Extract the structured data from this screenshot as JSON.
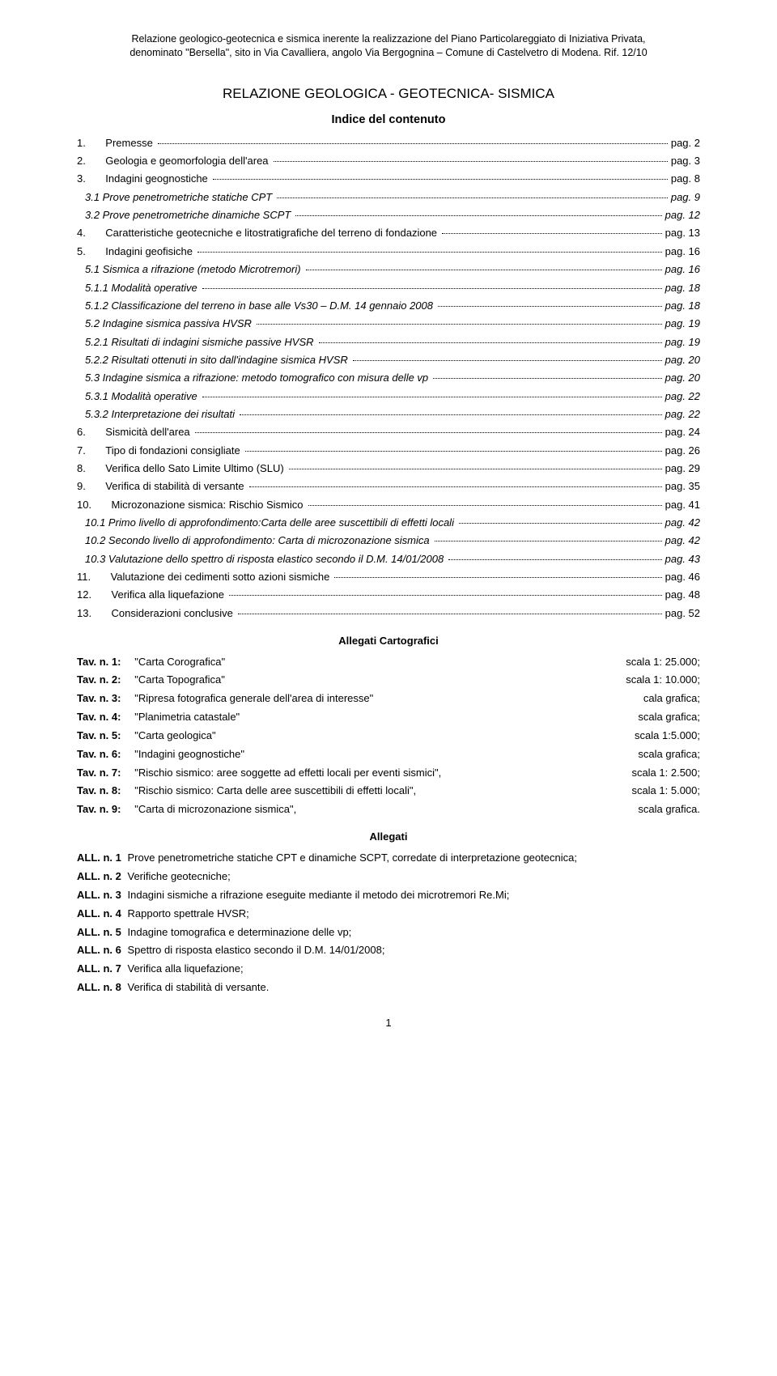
{
  "header": {
    "line1": "Relazione geologico-geotecnica e sismica inerente la realizzazione del Piano Particolareggiato di Iniziativa Privata,",
    "line2": "denominato \"Bersella\", sito in Via Cavalliera, angolo Via Bergognina – Comune di Castelvetro di Modena.   Rif. 12/10"
  },
  "mainTitle": "RELAZIONE GEOLOGICA - GEOTECNICA- SISMICA",
  "subTitle": "Indice del contenuto",
  "toc": [
    {
      "num": "1.",
      "label": "Premesse",
      "page": "pag. 2",
      "italic": false,
      "indent": 0
    },
    {
      "num": "2.",
      "label": "Geologia e geomorfologia dell'area",
      "page": "pag. 3",
      "italic": false,
      "indent": 0
    },
    {
      "num": "3.",
      "label": "Indagini geognostiche",
      "page": "pag. 8",
      "italic": false,
      "indent": 0
    },
    {
      "num": "",
      "label": "3.1 Prove penetrometriche statiche CPT",
      "page": "pag. 9",
      "italic": true,
      "indent": 0
    },
    {
      "num": "",
      "label": "3.2 Prove penetrometriche dinamiche SCPT",
      "page": "pag. 12",
      "italic": true,
      "indent": 0
    },
    {
      "num": "4.",
      "label": "Caratteristiche geotecniche e litostratigrafiche del terreno di fondazione",
      "page": "pag. 13",
      "italic": false,
      "indent": 0
    },
    {
      "num": "5.",
      "label": "Indagini geofisiche",
      "page": "pag. 16",
      "italic": false,
      "indent": 0
    },
    {
      "num": "",
      "label": "5.1 Sismica a rifrazione (metodo Microtremori)",
      "page": "pag. 16",
      "italic": true,
      "indent": 0
    },
    {
      "num": "",
      "label": "5.1.1 Modalità operative",
      "page": "pag. 18",
      "italic": true,
      "indent": 0
    },
    {
      "num": "",
      "label": "5.1.2 Classificazione del terreno in base alle Vs30 – D.M. 14 gennaio 2008",
      "page": "pag. 18",
      "italic": true,
      "indent": 0
    },
    {
      "num": "",
      "label": "5.2 Indagine sismica passiva HVSR",
      "page": "pag. 19",
      "italic": true,
      "indent": 0
    },
    {
      "num": "",
      "label": "5.2.1 Risultati di indagini sismiche passive HVSR",
      "page": "pag. 19",
      "italic": true,
      "indent": 0
    },
    {
      "num": "",
      "label": "5.2.2 Risultati ottenuti in sito dall'indagine sismica HVSR",
      "page": "pag. 20",
      "italic": true,
      "indent": 0
    },
    {
      "num": "",
      "label": "5.3 Indagine sismica a rifrazione: metodo tomografico con misura delle vp",
      "page": "pag. 20",
      "italic": true,
      "indent": 0
    },
    {
      "num": "",
      "label": "5.3.1 Modalità operative",
      "page": "pag. 22",
      "italic": true,
      "indent": 0
    },
    {
      "num": "",
      "label": "5.3.2 Interpretazione dei risultati",
      "page": "pag. 22",
      "italic": true,
      "indent": 0
    },
    {
      "num": "6.",
      "label": "Sismicità dell'area",
      "page": "pag. 24",
      "italic": false,
      "indent": 0
    },
    {
      "num": "7.",
      "label": "Tipo di fondazioni consigliate",
      "page": "pag. 26",
      "italic": false,
      "indent": 0
    },
    {
      "num": "8.",
      "label": "Verifica dello Sato Limite Ultimo (SLU)",
      "page": "pag. 29",
      "italic": false,
      "indent": 0
    },
    {
      "num": "9.",
      "label": "Verifica di stabilità di versante",
      "page": "pag. 35",
      "italic": false,
      "indent": 0
    },
    {
      "num": "10.",
      "label": "Microzonazione sismica: Rischio Sismico",
      "page": "pag. 41",
      "italic": false,
      "indent": 0
    },
    {
      "num": "",
      "label": "10.1  Primo livello di approfondimento:Carta delle aree suscettibili di effetti locali",
      "page": "pag. 42",
      "italic": true,
      "indent": 0
    },
    {
      "num": "",
      "label": "10.2  Secondo livello di approfondimento: Carta di microzonazione sismica",
      "page": "pag. 42",
      "italic": true,
      "indent": 0
    },
    {
      "num": "",
      "label": "10.3  Valutazione dello spettro di risposta elastico secondo il D.M. 14/01/2008",
      "page": "pag. 43",
      "italic": true,
      "indent": 0
    },
    {
      "num": "11.",
      "label": "Valutazione dei cedimenti sotto azioni sismiche",
      "page": "pag. 46",
      "italic": false,
      "indent": 0
    },
    {
      "num": "12.",
      "label": "Verifica alla liquefazione",
      "page": "pag. 48",
      "italic": false,
      "indent": 0
    },
    {
      "num": "13.",
      "label": "Considerazioni conclusive",
      "page": "pag. 52",
      "italic": false,
      "indent": 0
    }
  ],
  "allegatiCartograficiTitle": "Allegati Cartografici",
  "tav": [
    {
      "key": "Tav. n. 1:",
      "desc": "\"Carta Corografica\"",
      "scale": "scala 1: 25.000;"
    },
    {
      "key": "Tav. n. 2:",
      "desc": "\"Carta Topografica\"",
      "scale": "scala 1: 10.000;"
    },
    {
      "key": "Tav. n. 3:",
      "desc": "\"Ripresa fotografica generale dell'area di interesse\"",
      "scale": "cala grafica;"
    },
    {
      "key": "Tav. n. 4:",
      "desc": "\"Planimetria catastale\"",
      "scale": "scala grafica;"
    },
    {
      "key": "Tav. n. 5:",
      "desc": "\"Carta geologica\"",
      "scale": "scala 1:5.000;"
    },
    {
      "key": "Tav. n. 6:",
      "desc": "\"Indagini geognostiche\"",
      "scale": "scala grafica;"
    },
    {
      "key": "Tav. n. 7:",
      "desc": "\"Rischio sismico: aree soggette ad effetti locali per eventi sismici\",",
      "scale": "scala 1: 2.500;"
    },
    {
      "key": "Tav. n. 8:",
      "desc": "\"Rischio sismico: Carta delle aree suscettibili di effetti locali\",",
      "scale": "scala 1: 5.000;"
    },
    {
      "key": "Tav. n. 9:",
      "desc": "\"Carta di microzonazione sismica\",",
      "scale": "scala grafica."
    }
  ],
  "allegatiTitle": "Allegati",
  "allegati": [
    {
      "key": "ALL. n. 1",
      "desc": "Prove penetrometriche statiche CPT e dinamiche SCPT, corredate di interpretazione geotecnica;"
    },
    {
      "key": "ALL. n. 2",
      "desc": "Verifiche geotecniche;"
    },
    {
      "key": "ALL. n. 3",
      "desc": "Indagini sismiche a rifrazione eseguite mediante il metodo dei microtremori Re.Mi;"
    },
    {
      "key": "ALL. n. 4",
      "desc": "Rapporto spettrale HVSR;"
    },
    {
      "key": "ALL. n. 5",
      "desc": "Indagine tomografica e determinazione delle vp;"
    },
    {
      "key": "ALL. n. 6",
      "desc": "Spettro di risposta elastico secondo il D.M. 14/01/2008;"
    },
    {
      "key": "ALL. n. 7",
      "desc": "Verifica alla liquefazione;"
    },
    {
      "key": "ALL. n. 8",
      "desc": "Verifica di stabilità di versante."
    }
  ],
  "pageNumber": "1"
}
